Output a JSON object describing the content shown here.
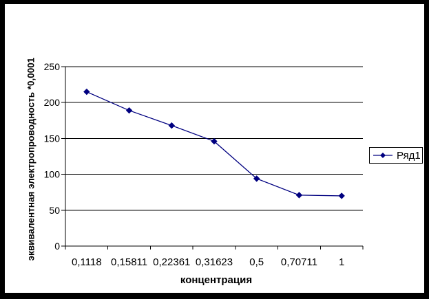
{
  "chart_data": {
    "type": "line",
    "categories": [
      "0,1118",
      "0,15811",
      "0,22361",
      "0,31623",
      "0,5",
      "0,70711",
      "1"
    ],
    "series": [
      {
        "name": "Ряд1",
        "values": [
          215,
          189,
          168,
          146,
          94,
          71,
          70
        ]
      }
    ],
    "xlabel": "концентрация",
    "ylabel": "эквивалентная электропроводность *0,0001",
    "ylim": [
      0,
      250
    ],
    "ytick_step": 50,
    "grid": true,
    "legend_position": "right",
    "marker": "diamond",
    "colors": {
      "series": "#000080",
      "axis": "#000000",
      "text": "#000000",
      "plot_background": "#ffffff",
      "frame": "#000000"
    }
  }
}
